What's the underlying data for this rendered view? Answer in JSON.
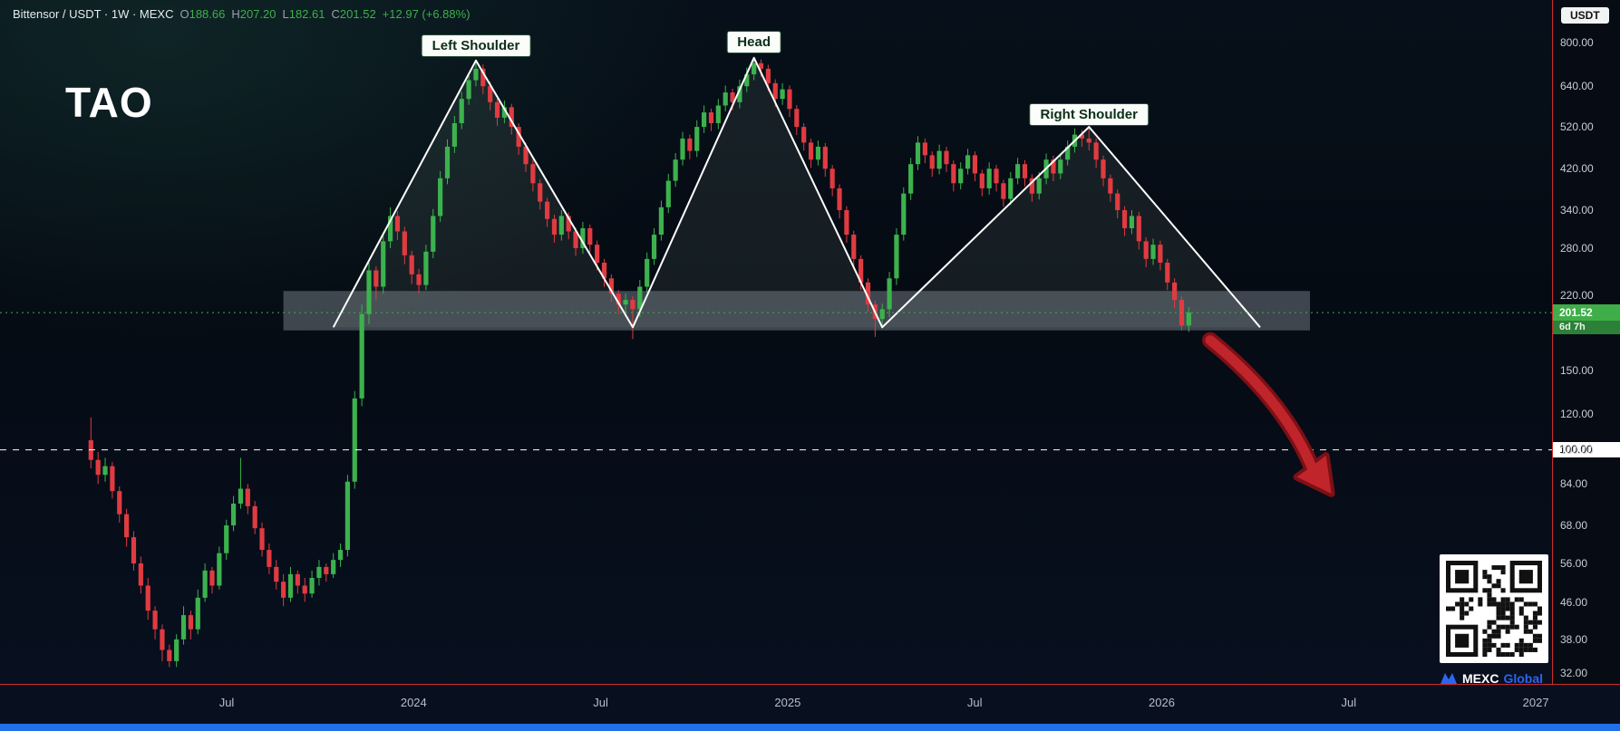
{
  "header": {
    "symbol_title": "Bittensor / USDT · 1W · MEXC",
    "ohlc": {
      "o_label": "O",
      "o_value": "188.66",
      "h_label": "H",
      "h_value": "207.20",
      "l_label": "L",
      "l_value": "182.61",
      "c_label": "C",
      "c_value": "201.52",
      "change": "+12.97 (+6.88%)"
    },
    "quote_currency_button": "USDT"
  },
  "watermark": "TAO",
  "annotations": {
    "left_shoulder": "Left Shoulder",
    "head": "Head",
    "right_shoulder": "Right Shoulder"
  },
  "price_scale": {
    "ticks": [
      "800.00",
      "640.00",
      "520.00",
      "420.00",
      "340.00",
      "280.00",
      "220.00",
      "150.00",
      "120.00",
      "100.00",
      "84.00",
      "68.00",
      "56.00",
      "46.00",
      "38.00",
      "32.00"
    ],
    "current_price_label": "201.52",
    "countdown": "6d 7h",
    "reference_price_label": "100.00"
  },
  "time_scale": {
    "ticks": [
      "Jul",
      "2024",
      "Jul",
      "2025",
      "Jul",
      "2026",
      "Jul",
      "2027"
    ]
  },
  "branding": {
    "name": "MEXC",
    "suffix": "Global"
  },
  "colors": {
    "background": "#060b13",
    "up_candle": "#3cb24e",
    "down_candle": "#e03b41",
    "accent_green": "#3fae49",
    "pattern_line": "#ffffff",
    "support_zone_fill": "rgba(195,205,215,0.30)",
    "pattern_fill": "rgba(140,165,150,0.12)",
    "arrow_fill": "#c0252b",
    "arrow_outline": "#7c1015",
    "axis_line_red": "#cc2b2b",
    "reference_line": "#ffffff",
    "bottom_bar_blue": "#2170e8",
    "brand_blue": "#2b65f0"
  },
  "chart_data": {
    "type": "candlestick",
    "symbol": "TAO/USDT",
    "timeframe": "1W",
    "exchange": "MEXC",
    "title": "Bittensor / USDT 1W MEXC head-and-shoulders",
    "y_axis": {
      "scale": "log",
      "ticks": [
        800,
        640,
        520,
        420,
        340,
        280,
        220,
        150,
        120,
        100,
        84,
        68,
        56,
        46,
        38,
        32
      ],
      "ylim": [
        30,
        830
      ]
    },
    "x_axis": {
      "ticks": [
        "Jul",
        "2024",
        "Jul",
        "2025",
        "Jul",
        "2026",
        "Jul",
        "2027"
      ]
    },
    "current_price": 201.52,
    "reference_line": 100,
    "support_zone": {
      "from_index": 27,
      "to_index": 171,
      "top": 225,
      "bottom": 184
    },
    "pattern": {
      "name": "Head and Shoulders",
      "points": [
        [
          34,
          187
        ],
        [
          54,
          730
        ],
        [
          76,
          187
        ],
        [
          93,
          740
        ],
        [
          111,
          187
        ],
        [
          140,
          520
        ],
        [
          164,
          187
        ]
      ]
    },
    "projection_arrow": {
      "from": [
        157,
        175
      ],
      "to": [
        174,
        80
      ]
    },
    "candles": [
      [
        105,
        118,
        91,
        95
      ],
      [
        95,
        99,
        84,
        88
      ],
      [
        88,
        96,
        85,
        92
      ],
      [
        92,
        94,
        78,
        81
      ],
      [
        81,
        83,
        69,
        72
      ],
      [
        72,
        74,
        61,
        64
      ],
      [
        64,
        66,
        54,
        56
      ],
      [
        56,
        58,
        48,
        50
      ],
      [
        50,
        52,
        42,
        44
      ],
      [
        44,
        45,
        38,
        40
      ],
      [
        40,
        41,
        34,
        36
      ],
      [
        36,
        37,
        33,
        34
      ],
      [
        34,
        39,
        33,
        38
      ],
      [
        38,
        45,
        37,
        43
      ],
      [
        43,
        44,
        38,
        40
      ],
      [
        40,
        49,
        39,
        47
      ],
      [
        47,
        56,
        46,
        54
      ],
      [
        54,
        55,
        48,
        50
      ],
      [
        50,
        61,
        49,
        59
      ],
      [
        59,
        70,
        57,
        68
      ],
      [
        68,
        79,
        66,
        76
      ],
      [
        76,
        96,
        74,
        82
      ],
      [
        82,
        84,
        72,
        75
      ],
      [
        75,
        77,
        65,
        67
      ],
      [
        67,
        69,
        58,
        60
      ],
      [
        60,
        62,
        53,
        55
      ],
      [
        55,
        57,
        49,
        51
      ],
      [
        51,
        53,
        45,
        47
      ],
      [
        47,
        55,
        46,
        53
      ],
      [
        53,
        54,
        48,
        50
      ],
      [
        50,
        52,
        46,
        48
      ],
      [
        48,
        54,
        47,
        52
      ],
      [
        52,
        57,
        50,
        55
      ],
      [
        55,
        56,
        51,
        53
      ],
      [
        53,
        59,
        52,
        57
      ],
      [
        57,
        62,
        55,
        60
      ],
      [
        60,
        88,
        58,
        85
      ],
      [
        85,
        135,
        82,
        130
      ],
      [
        130,
        210,
        125,
        200
      ],
      [
        200,
        260,
        190,
        250
      ],
      [
        250,
        255,
        215,
        230
      ],
      [
        230,
        300,
        222,
        290
      ],
      [
        290,
        345,
        280,
        330
      ],
      [
        330,
        338,
        292,
        305
      ],
      [
        305,
        312,
        258,
        270
      ],
      [
        270,
        276,
        233,
        245
      ],
      [
        245,
        252,
        222,
        232
      ],
      [
        232,
        285,
        226,
        275
      ],
      [
        275,
        342,
        266,
        330
      ],
      [
        330,
        415,
        320,
        400
      ],
      [
        400,
        488,
        388,
        470
      ],
      [
        470,
        550,
        455,
        530
      ],
      [
        530,
        622,
        514,
        600
      ],
      [
        600,
        685,
        582,
        660
      ],
      [
        660,
        730,
        640,
        700
      ],
      [
        700,
        715,
        615,
        640
      ],
      [
        640,
        655,
        566,
        590
      ],
      [
        590,
        600,
        523,
        545
      ],
      [
        545,
        595,
        530,
        575
      ],
      [
        575,
        585,
        500,
        520
      ],
      [
        520,
        530,
        451,
        470
      ],
      [
        470,
        480,
        413,
        430
      ],
      [
        430,
        440,
        374,
        390
      ],
      [
        390,
        398,
        341,
        355
      ],
      [
        355,
        362,
        312,
        325
      ],
      [
        325,
        332,
        288,
        300
      ],
      [
        300,
        340,
        291,
        330
      ],
      [
        330,
        336,
        293,
        305
      ],
      [
        305,
        311,
        269,
        280
      ],
      [
        280,
        320,
        272,
        310
      ],
      [
        310,
        316,
        274,
        285
      ],
      [
        285,
        291,
        250,
        260
      ],
      [
        260,
        265,
        230,
        240
      ],
      [
        240,
        245,
        213,
        222
      ],
      [
        222,
        226,
        200,
        210
      ],
      [
        210,
        222,
        202,
        215
      ],
      [
        215,
        219,
        176,
        205
      ],
      [
        205,
        238,
        197,
        230
      ],
      [
        230,
        274,
        223,
        265
      ],
      [
        265,
        310,
        257,
        300
      ],
      [
        300,
        357,
        291,
        345
      ],
      [
        345,
        409,
        335,
        395
      ],
      [
        395,
        455,
        383,
        440
      ],
      [
        440,
        507,
        427,
        490
      ],
      [
        490,
        500,
        441,
        460
      ],
      [
        460,
        538,
        446,
        520
      ],
      [
        520,
        580,
        504,
        560
      ],
      [
        560,
        571,
        509,
        530
      ],
      [
        530,
        600,
        514,
        580
      ],
      [
        580,
        642,
        563,
        620
      ],
      [
        620,
        632,
        566,
        590
      ],
      [
        590,
        662,
        572,
        640
      ],
      [
        640,
        704,
        621,
        680
      ],
      [
        680,
        740,
        660,
        720
      ],
      [
        720,
        734,
        672,
        700
      ],
      [
        700,
        714,
        624,
        650
      ],
      [
        650,
        663,
        576,
        600
      ],
      [
        600,
        650,
        582,
        630
      ],
      [
        630,
        643,
        547,
        570
      ],
      [
        570,
        581,
        499,
        520
      ],
      [
        520,
        530,
        461,
        480
      ],
      [
        480,
        490,
        422,
        440
      ],
      [
        440,
        485,
        427,
        470
      ],
      [
        470,
        479,
        403,
        420
      ],
      [
        420,
        428,
        365,
        380
      ],
      [
        380,
        388,
        326,
        340
      ],
      [
        340,
        347,
        288,
        300
      ],
      [
        300,
        306,
        254,
        265
      ],
      [
        265,
        270,
        226,
        235
      ],
      [
        235,
        240,
        202,
        210
      ],
      [
        210,
        214,
        178,
        195
      ],
      [
        195,
        211,
        187,
        205
      ],
      [
        205,
        248,
        197,
        240
      ],
      [
        240,
        310,
        232,
        300
      ],
      [
        300,
        382,
        291,
        370
      ],
      [
        370,
        444,
        358,
        430
      ],
      [
        430,
        496,
        417,
        480
      ],
      [
        480,
        490,
        432,
        450
      ],
      [
        450,
        459,
        403,
        420
      ],
      [
        420,
        475,
        408,
        460
      ],
      [
        460,
        470,
        413,
        430
      ],
      [
        430,
        438,
        374,
        390
      ],
      [
        390,
        434,
        378,
        420
      ],
      [
        420,
        465,
        408,
        450
      ],
      [
        450,
        459,
        394,
        410
      ],
      [
        410,
        418,
        365,
        380
      ],
      [
        380,
        434,
        368,
        420
      ],
      [
        420,
        428,
        374,
        390
      ],
      [
        390,
        397,
        346,
        360
      ],
      [
        360,
        413,
        349,
        400
      ],
      [
        400,
        444,
        388,
        430
      ],
      [
        430,
        439,
        384,
        400
      ],
      [
        400,
        408,
        355,
        370
      ],
      [
        370,
        413,
        359,
        400
      ],
      [
        400,
        454,
        388,
        440
      ],
      [
        440,
        449,
        394,
        410
      ],
      [
        410,
        454,
        398,
        440
      ],
      [
        440,
        485,
        427,
        470
      ],
      [
        470,
        516,
        456,
        500
      ],
      [
        500,
        512,
        470,
        490
      ],
      [
        490,
        520,
        461,
        480
      ],
      [
        480,
        490,
        422,
        440
      ],
      [
        440,
        449,
        384,
        400
      ],
      [
        400,
        408,
        355,
        370
      ],
      [
        370,
        378,
        326,
        340
      ],
      [
        340,
        347,
        298,
        310
      ],
      [
        310,
        340,
        301,
        330
      ],
      [
        330,
        337,
        278,
        290
      ],
      [
        290,
        296,
        254,
        265
      ],
      [
        265,
        294,
        257,
        285
      ],
      [
        285,
        291,
        250,
        260
      ],
      [
        260,
        265,
        226,
        235
      ],
      [
        235,
        240,
        206,
        215
      ],
      [
        215,
        219,
        184,
        188.66
      ],
      [
        188.66,
        207.2,
        182.61,
        201.52
      ]
    ]
  }
}
